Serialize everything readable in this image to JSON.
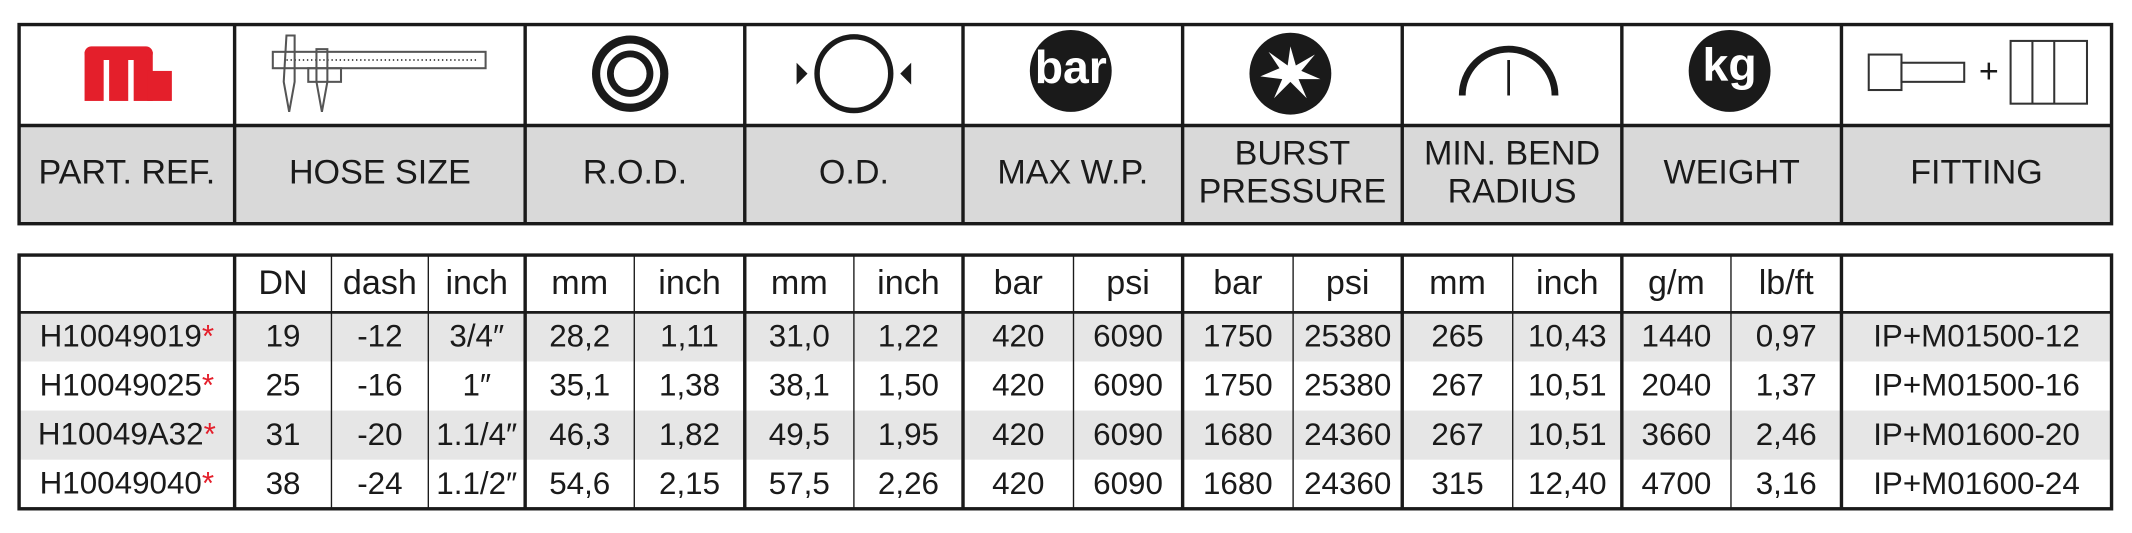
{
  "header": {
    "icons": {
      "max_wp": "bar",
      "weight": "kg"
    },
    "columns": [
      {
        "lines": [
          "PART. REF."
        ]
      },
      {
        "lines": [
          "HOSE SIZE"
        ]
      },
      {
        "lines": [
          "R.O.D."
        ]
      },
      {
        "lines": [
          "O.D."
        ]
      },
      {
        "lines": [
          "MAX W.P."
        ]
      },
      {
        "lines": [
          "BURST",
          "PRESSURE"
        ]
      },
      {
        "lines": [
          "MIN. BEND",
          "RADIUS"
        ]
      },
      {
        "lines": [
          "WEIGHT"
        ]
      },
      {
        "lines": [
          "FITTING"
        ]
      }
    ],
    "fitting_plus": "+"
  },
  "table": {
    "units": [
      "DN",
      "dash",
      "inch",
      "mm",
      "inch",
      "mm",
      "inch",
      "bar",
      "psi",
      "bar",
      "psi",
      "mm",
      "inch",
      "g/m",
      "lb/ft"
    ],
    "ref_mark": "*",
    "rows": [
      [
        "H10049019",
        "19",
        "-12",
        "3/4″",
        "28,2",
        "1,11",
        "31,0",
        "1,22",
        "420",
        "6090",
        "1750",
        "25380",
        "265",
        "10,43",
        "1440",
        "0,97",
        "IP+M01500-12"
      ],
      [
        "H10049025",
        "25",
        "-16",
        "1″",
        "35,1",
        "1,38",
        "38,1",
        "1,50",
        "420",
        "6090",
        "1750",
        "25380",
        "267",
        "10,51",
        "2040",
        "1,37",
        "IP+M01500-16"
      ],
      [
        "H10049A32",
        "31",
        "-20",
        "1.1/4″",
        "46,3",
        "1,82",
        "49,5",
        "1,95",
        "420",
        "6090",
        "1680",
        "24360",
        "267",
        "10,51",
        "3660",
        "2,46",
        "IP+M01600-20"
      ],
      [
        "H10049040",
        "38",
        "-24",
        "1.1/2″",
        "54,6",
        "2,15",
        "57,5",
        "2,26",
        "420",
        "6090",
        "1680",
        "24360",
        "315",
        "12,40",
        "4700",
        "3,16",
        "IP+M01600-24"
      ]
    ]
  }
}
